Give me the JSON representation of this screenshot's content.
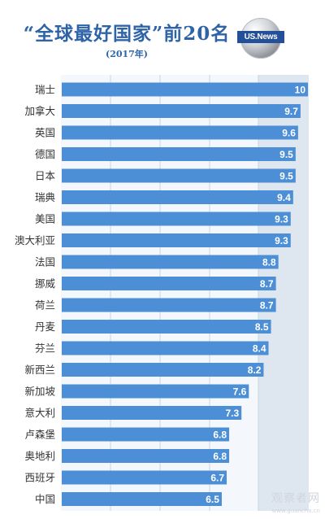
{
  "title": "“全球最好国家”前20名",
  "subtitle": "(2017年)",
  "logo": {
    "text": "US.News"
  },
  "watermark": {
    "text": "观察者网",
    "url": "www.guancha.cn"
  },
  "colors": {
    "title": "#2f63a7",
    "bar": "#4d8fd6",
    "plot_bg": "#f4f7fb",
    "gridline": "#c7d4e3",
    "right_band": "#dee6f0",
    "label": "#333333",
    "value_text": "#ffffff"
  },
  "chart_data": {
    "type": "bar",
    "orientation": "horizontal",
    "title": "“全球最好国家”前20名",
    "subtitle": "(2017年)",
    "categories": [
      "瑞士",
      "加拿大",
      "英国",
      "德国",
      "日本",
      "瑞典",
      "美国",
      "澳大利亚",
      "法国",
      "挪威",
      "荷兰",
      "丹麦",
      "芬兰",
      "新西兰",
      "新加坡",
      "意大利",
      "卢森堡",
      "奥地利",
      "西班牙",
      "中国"
    ],
    "values": [
      10,
      9.7,
      9.6,
      9.5,
      9.5,
      9.4,
      9.3,
      9.3,
      8.8,
      8.7,
      8.7,
      8.5,
      8.4,
      8.2,
      7.6,
      7.3,
      6.8,
      6.8,
      6.7,
      6.5
    ],
    "value_labels": [
      "10",
      "9.7",
      "9.6",
      "9.5",
      "9.5",
      "9.4",
      "9.3",
      "9.3",
      "8.8",
      "8.7",
      "8.7",
      "8.5",
      "8.4",
      "8.2",
      "7.6",
      "7.3",
      "6.8",
      "6.8",
      "6.7",
      "6.5"
    ],
    "xlim": [
      0,
      10
    ],
    "grid": true,
    "xlabel": "",
    "ylabel": ""
  }
}
